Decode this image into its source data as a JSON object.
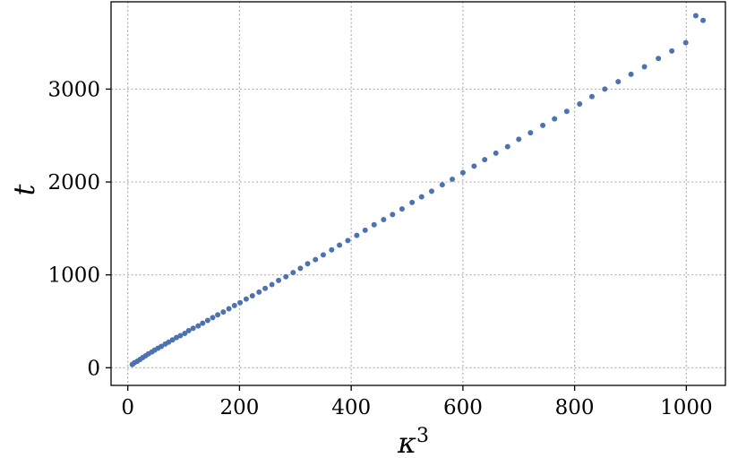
{
  "chart_data": {
    "type": "scatter",
    "title": "",
    "xlabel": "κ",
    "xlabel_superscript": "3",
    "ylabel": "t",
    "xlim": [
      -30,
      1070
    ],
    "ylim": [
      -190,
      3940
    ],
    "xticks": [
      0,
      200,
      400,
      600,
      800,
      1000
    ],
    "yticks": [
      0,
      1000,
      2000,
      3000
    ],
    "xtick_labels": [
      "0",
      "200",
      "400",
      "600",
      "800",
      "1000"
    ],
    "ytick_labels": [
      "0",
      "1000",
      "2000",
      "3000"
    ],
    "grid": true,
    "legend": "none",
    "colors": {
      "points": "#4c72b0"
    },
    "series": [
      {
        "x": [
          8,
          12,
          17,
          22,
          27,
          32,
          37,
          43,
          48,
          54,
          60,
          67,
          73,
          80,
          87,
          94,
          102,
          109,
          117,
          126,
          134,
          143,
          152,
          161,
          171,
          181,
          191,
          201,
          212,
          223,
          235,
          246,
          258,
          270,
          283,
          296,
          309,
          322,
          336,
          350,
          365,
          379,
          394,
          410,
          425,
          441,
          458,
          474,
          491,
          509,
          526,
          544,
          563,
          581,
          600,
          620,
          639,
          659,
          680,
          700,
          721,
          743,
          764,
          786,
          809,
          831,
          854,
          878,
          901,
          925,
          950,
          974,
          999,
          1017,
          1030
        ],
        "y": [
          35,
          55,
          70,
          90,
          110,
          130,
          150,
          170,
          190,
          210,
          230,
          255,
          275,
          300,
          325,
          345,
          370,
          400,
          425,
          450,
          480,
          510,
          540,
          570,
          600,
          635,
          670,
          700,
          740,
          775,
          815,
          855,
          895,
          940,
          980,
          1025,
          1070,
          1120,
          1165,
          1215,
          1270,
          1320,
          1370,
          1425,
          1480,
          1540,
          1595,
          1650,
          1710,
          1780,
          1840,
          1900,
          1970,
          2030,
          2100,
          2170,
          2240,
          2310,
          2380,
          2460,
          2530,
          2610,
          2680,
          2760,
          2840,
          2920,
          3000,
          3080,
          3160,
          3240,
          3330,
          3410,
          3500,
          3790,
          3740
        ]
      }
    ]
  }
}
